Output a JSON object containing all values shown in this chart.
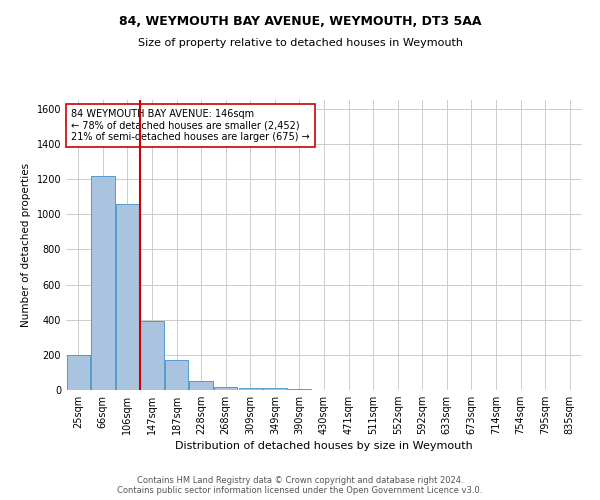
{
  "title": "84, WEYMOUTH BAY AVENUE, WEYMOUTH, DT3 5AA",
  "subtitle": "Size of property relative to detached houses in Weymouth",
  "xlabel": "Distribution of detached houses by size in Weymouth",
  "ylabel": "Number of detached properties",
  "annotation_line1": "84 WEYMOUTH BAY AVENUE: 146sqm",
  "annotation_line2": "← 78% of detached houses are smaller (2,452)",
  "annotation_line3": "21% of semi-detached houses are larger (675) →",
  "categories": [
    "25sqm",
    "66sqm",
    "106sqm",
    "147sqm",
    "187sqm",
    "228sqm",
    "268sqm",
    "309sqm",
    "349sqm",
    "390sqm",
    "430sqm",
    "471sqm",
    "511sqm",
    "552sqm",
    "592sqm",
    "633sqm",
    "673sqm",
    "714sqm",
    "754sqm",
    "795sqm",
    "835sqm"
  ],
  "values": [
    200,
    1220,
    1060,
    395,
    170,
    50,
    18,
    10,
    10,
    8,
    0,
    0,
    0,
    0,
    0,
    0,
    0,
    0,
    0,
    0,
    0
  ],
  "bar_color": "#aac4e0",
  "bar_edge_color": "#5599cc",
  "red_line_color": "#cc0000",
  "annotation_box_edge": "#cc0000",
  "background_color": "#ffffff",
  "grid_color": "#cccccc",
  "footer_line1": "Contains HM Land Registry data © Crown copyright and database right 2024.",
  "footer_line2": "Contains public sector information licensed under the Open Government Licence v3.0.",
  "ylim": [
    0,
    1650
  ],
  "title_fontsize": 9,
  "subtitle_fontsize": 8,
  "xlabel_fontsize": 8,
  "ylabel_fontsize": 7.5,
  "tick_fontsize": 7,
  "annotation_fontsize": 7,
  "footer_fontsize": 6
}
